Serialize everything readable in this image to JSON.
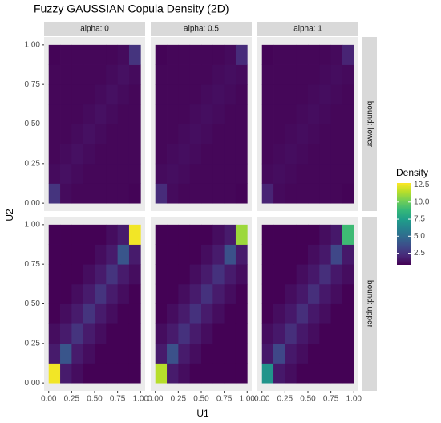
{
  "chart_data": {
    "type": "heatmap",
    "title": "Fuzzy GAUSSIAN Copula Density (2D)",
    "x_label": "U1",
    "y_label": "U2",
    "facet_cols": [
      "alpha: 0",
      "alpha: 0.5",
      "alpha: 1"
    ],
    "facet_rows": [
      "bound: lower",
      "bound: upper"
    ],
    "xlim": [
      -0.05,
      1.05
    ],
    "ylim": [
      -0.05,
      1.05
    ],
    "xticks": [
      {
        "value": 0,
        "label": "0.00"
      },
      {
        "value": 0.25,
        "label": "0.25"
      },
      {
        "value": 0.5,
        "label": "0.50"
      },
      {
        "value": 0.75,
        "label": "0.75"
      },
      {
        "value": 1,
        "label": "1.00"
      }
    ],
    "yticks": [
      {
        "value": 0,
        "label": "0.00"
      },
      {
        "value": 0.25,
        "label": "0.25"
      },
      {
        "value": 0.5,
        "label": "0.50"
      },
      {
        "value": 0.75,
        "label": "0.75"
      },
      {
        "value": 1,
        "label": "1.00"
      }
    ],
    "x": [
      0.0625,
      0.1875,
      0.3125,
      0.4375,
      0.5625,
      0.6875,
      0.8125,
      0.9375
    ],
    "y": [
      0.0625,
      0.1875,
      0.3125,
      0.4375,
      0.5625,
      0.6875,
      0.8125,
      0.9375
    ],
    "legend_title": "Density",
    "colorbar_lim": [
      0.8,
      12.8
    ],
    "colorbar_ticks": [
      2.5,
      {
        "value": 5,
        "label": "5.0"
      },
      7.5,
      {
        "value": 10,
        "label": "10.0"
      },
      12.5
    ],
    "colormap": [
      "#440154",
      "#482878",
      "#3e4989",
      "#31688e",
      "#26828e",
      "#1f9e89",
      "#35b779",
      "#6ece58",
      "#b5de2b",
      "#fde725"
    ],
    "panels": [
      [
        {
          "z": [
            [
              2.6,
              1.15,
              1,
              1,
              1,
              1,
              1,
              0.9
            ],
            [
              1.15,
              1.3,
              1.15,
              1,
              1,
              1,
              1,
              1
            ],
            [
              1,
              1.15,
              1.3,
              1.15,
              1,
              1,
              1,
              1
            ],
            [
              1,
              1,
              1.15,
              1.3,
              1.15,
              1,
              1,
              1
            ],
            [
              1,
              1,
              1,
              1.15,
              1.3,
              1.15,
              1,
              1
            ],
            [
              1,
              1,
              1,
              1,
              1.15,
              1.3,
              1.15,
              1
            ],
            [
              1,
              1,
              1,
              1,
              1,
              1.15,
              1.3,
              1.15
            ],
            [
              0.9,
              1,
              1,
              1,
              1,
              1,
              1.15,
              2.6
            ]
          ]
        },
        {
          "z": [
            [
              2.3,
              1.15,
              1,
              1,
              1,
              1,
              1,
              0.9
            ],
            [
              1.15,
              1.25,
              1.15,
              1,
              1,
              1,
              1,
              1
            ],
            [
              1,
              1.15,
              1.25,
              1.15,
              1,
              1,
              1,
              1
            ],
            [
              1,
              1,
              1.15,
              1.25,
              1.15,
              1,
              1,
              1
            ],
            [
              1,
              1,
              1,
              1.15,
              1.25,
              1.15,
              1,
              1
            ],
            [
              1,
              1,
              1,
              1,
              1.15,
              1.25,
              1.15,
              1
            ],
            [
              1,
              1,
              1,
              1,
              1,
              1.15,
              1.25,
              1.15
            ],
            [
              0.9,
              1,
              1,
              1,
              1,
              1,
              1.15,
              2.3
            ]
          ]
        },
        {
          "z": [
            [
              2,
              1.1,
              1,
              1,
              1,
              1,
              1,
              0.9
            ],
            [
              1.1,
              1.2,
              1.1,
              1,
              1,
              1,
              1,
              1
            ],
            [
              1,
              1.1,
              1.2,
              1.1,
              1,
              1,
              1,
              1
            ],
            [
              1,
              1,
              1.1,
              1.2,
              1.1,
              1,
              1,
              1
            ],
            [
              1,
              1,
              1,
              1.1,
              1.2,
              1.1,
              1,
              1
            ],
            [
              1,
              1,
              1,
              1,
              1.1,
              1.2,
              1.1,
              1
            ],
            [
              1,
              1,
              1,
              1,
              1,
              1.1,
              1.2,
              1.1
            ],
            [
              0.9,
              1,
              1,
              1,
              1,
              1,
              1.1,
              2
            ]
          ]
        }
      ],
      [
        {
          "z": [
            [
              12.6,
              1.7,
              1.2,
              0.85,
              0.85,
              0.85,
              0.85,
              0.85
            ],
            [
              1.7,
              4,
              1.7,
              1.2,
              0.85,
              0.85,
              0.85,
              0.85
            ],
            [
              1.2,
              1.7,
              2.6,
              1.7,
              1.2,
              0.85,
              0.85,
              0.85
            ],
            [
              0.85,
              1.2,
              1.7,
              2.6,
              1.7,
              1.2,
              0.85,
              0.85
            ],
            [
              0.85,
              0.85,
              1.2,
              1.7,
              2.6,
              1.7,
              1.2,
              0.85
            ],
            [
              0.85,
              0.85,
              0.85,
              1.2,
              1.7,
              2.6,
              1.7,
              1.2
            ],
            [
              0.85,
              0.85,
              0.85,
              0.85,
              1.2,
              1.7,
              4,
              1.7
            ],
            [
              0.85,
              0.85,
              0.85,
              0.85,
              0.85,
              1.2,
              1.7,
              12.6
            ]
          ]
        },
        {
          "z": [
            [
              11.5,
              1.7,
              1.2,
              0.85,
              0.85,
              0.85,
              0.85,
              0.85
            ],
            [
              1.7,
              3.8,
              1.7,
              1.2,
              0.85,
              0.85,
              0.85,
              0.85
            ],
            [
              1.2,
              1.7,
              2.5,
              1.7,
              1.2,
              0.85,
              0.85,
              0.85
            ],
            [
              0.85,
              1.2,
              1.7,
              2.5,
              1.7,
              1.2,
              0.85,
              0.85
            ],
            [
              0.85,
              0.85,
              1.2,
              1.7,
              2.5,
              1.7,
              1.2,
              0.85
            ],
            [
              0.85,
              0.85,
              0.85,
              1.2,
              1.7,
              2.5,
              1.7,
              1.2
            ],
            [
              0.85,
              0.85,
              0.85,
              0.85,
              1.2,
              1.7,
              3.8,
              1.7
            ],
            [
              0.85,
              0.85,
              0.85,
              0.85,
              0.85,
              1.2,
              1.7,
              11
            ]
          ]
        },
        {
          "z": [
            [
              7,
              1.6,
              1.2,
              0.85,
              0.85,
              0.85,
              0.85,
              0.85
            ],
            [
              1.6,
              3.4,
              1.6,
              1.2,
              0.85,
              0.85,
              0.85,
              0.85
            ],
            [
              1.2,
              1.6,
              2.4,
              1.6,
              1.2,
              0.85,
              0.85,
              0.85
            ],
            [
              0.85,
              1.2,
              1.6,
              2.4,
              1.6,
              1.2,
              0.85,
              0.85
            ],
            [
              0.85,
              0.85,
              1.2,
              1.6,
              2.4,
              1.6,
              1.2,
              0.85
            ],
            [
              0.85,
              0.85,
              0.85,
              1.2,
              1.6,
              2.4,
              1.6,
              1.2
            ],
            [
              0.85,
              0.85,
              0.85,
              0.85,
              1.2,
              1.6,
              3.4,
              1.6
            ],
            [
              0.85,
              0.85,
              0.85,
              0.85,
              0.85,
              1.2,
              1.6,
              9
            ]
          ]
        }
      ]
    ]
  }
}
